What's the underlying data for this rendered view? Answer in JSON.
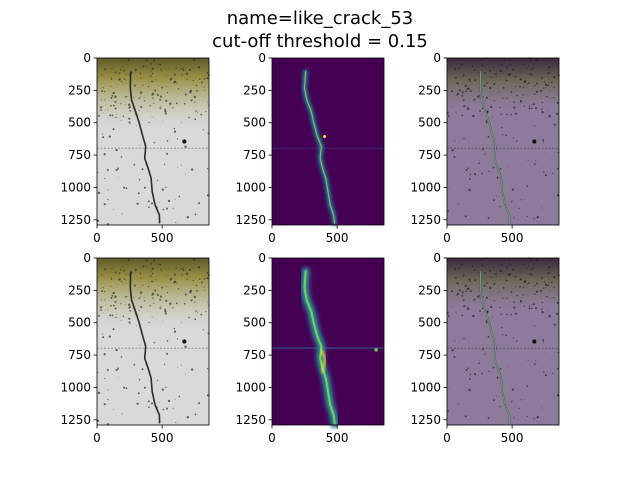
{
  "figure": {
    "title_line1": "name=like_crack_53",
    "title_line2": "cut-off threshold = 0.15"
  },
  "panels": [
    {
      "name": "original-image-top",
      "kind": "photo"
    },
    {
      "name": "prediction-heatmap-top",
      "kind": "heatmap-thin"
    },
    {
      "name": "overlay-image-top",
      "kind": "overlay"
    },
    {
      "name": "original-image-bottom",
      "kind": "photo"
    },
    {
      "name": "prediction-heatmap-bottom",
      "kind": "heatmap-wide"
    },
    {
      "name": "overlay-image-bottom",
      "kind": "overlay"
    }
  ],
  "axes": {
    "y_ticks": [
      "0",
      "250",
      "500",
      "750",
      "1000",
      "1250"
    ],
    "x_ticks": [
      "0",
      "500"
    ]
  },
  "colors": {
    "concrete": "#d6dad9",
    "moss": "#8a8340",
    "crack": "#2b2b28",
    "heatmap_bg": "#440154",
    "heatmap_mid": "#21918c",
    "heatmap_high": "#fde725",
    "overlay_tint": "#8e7a9a"
  }
}
